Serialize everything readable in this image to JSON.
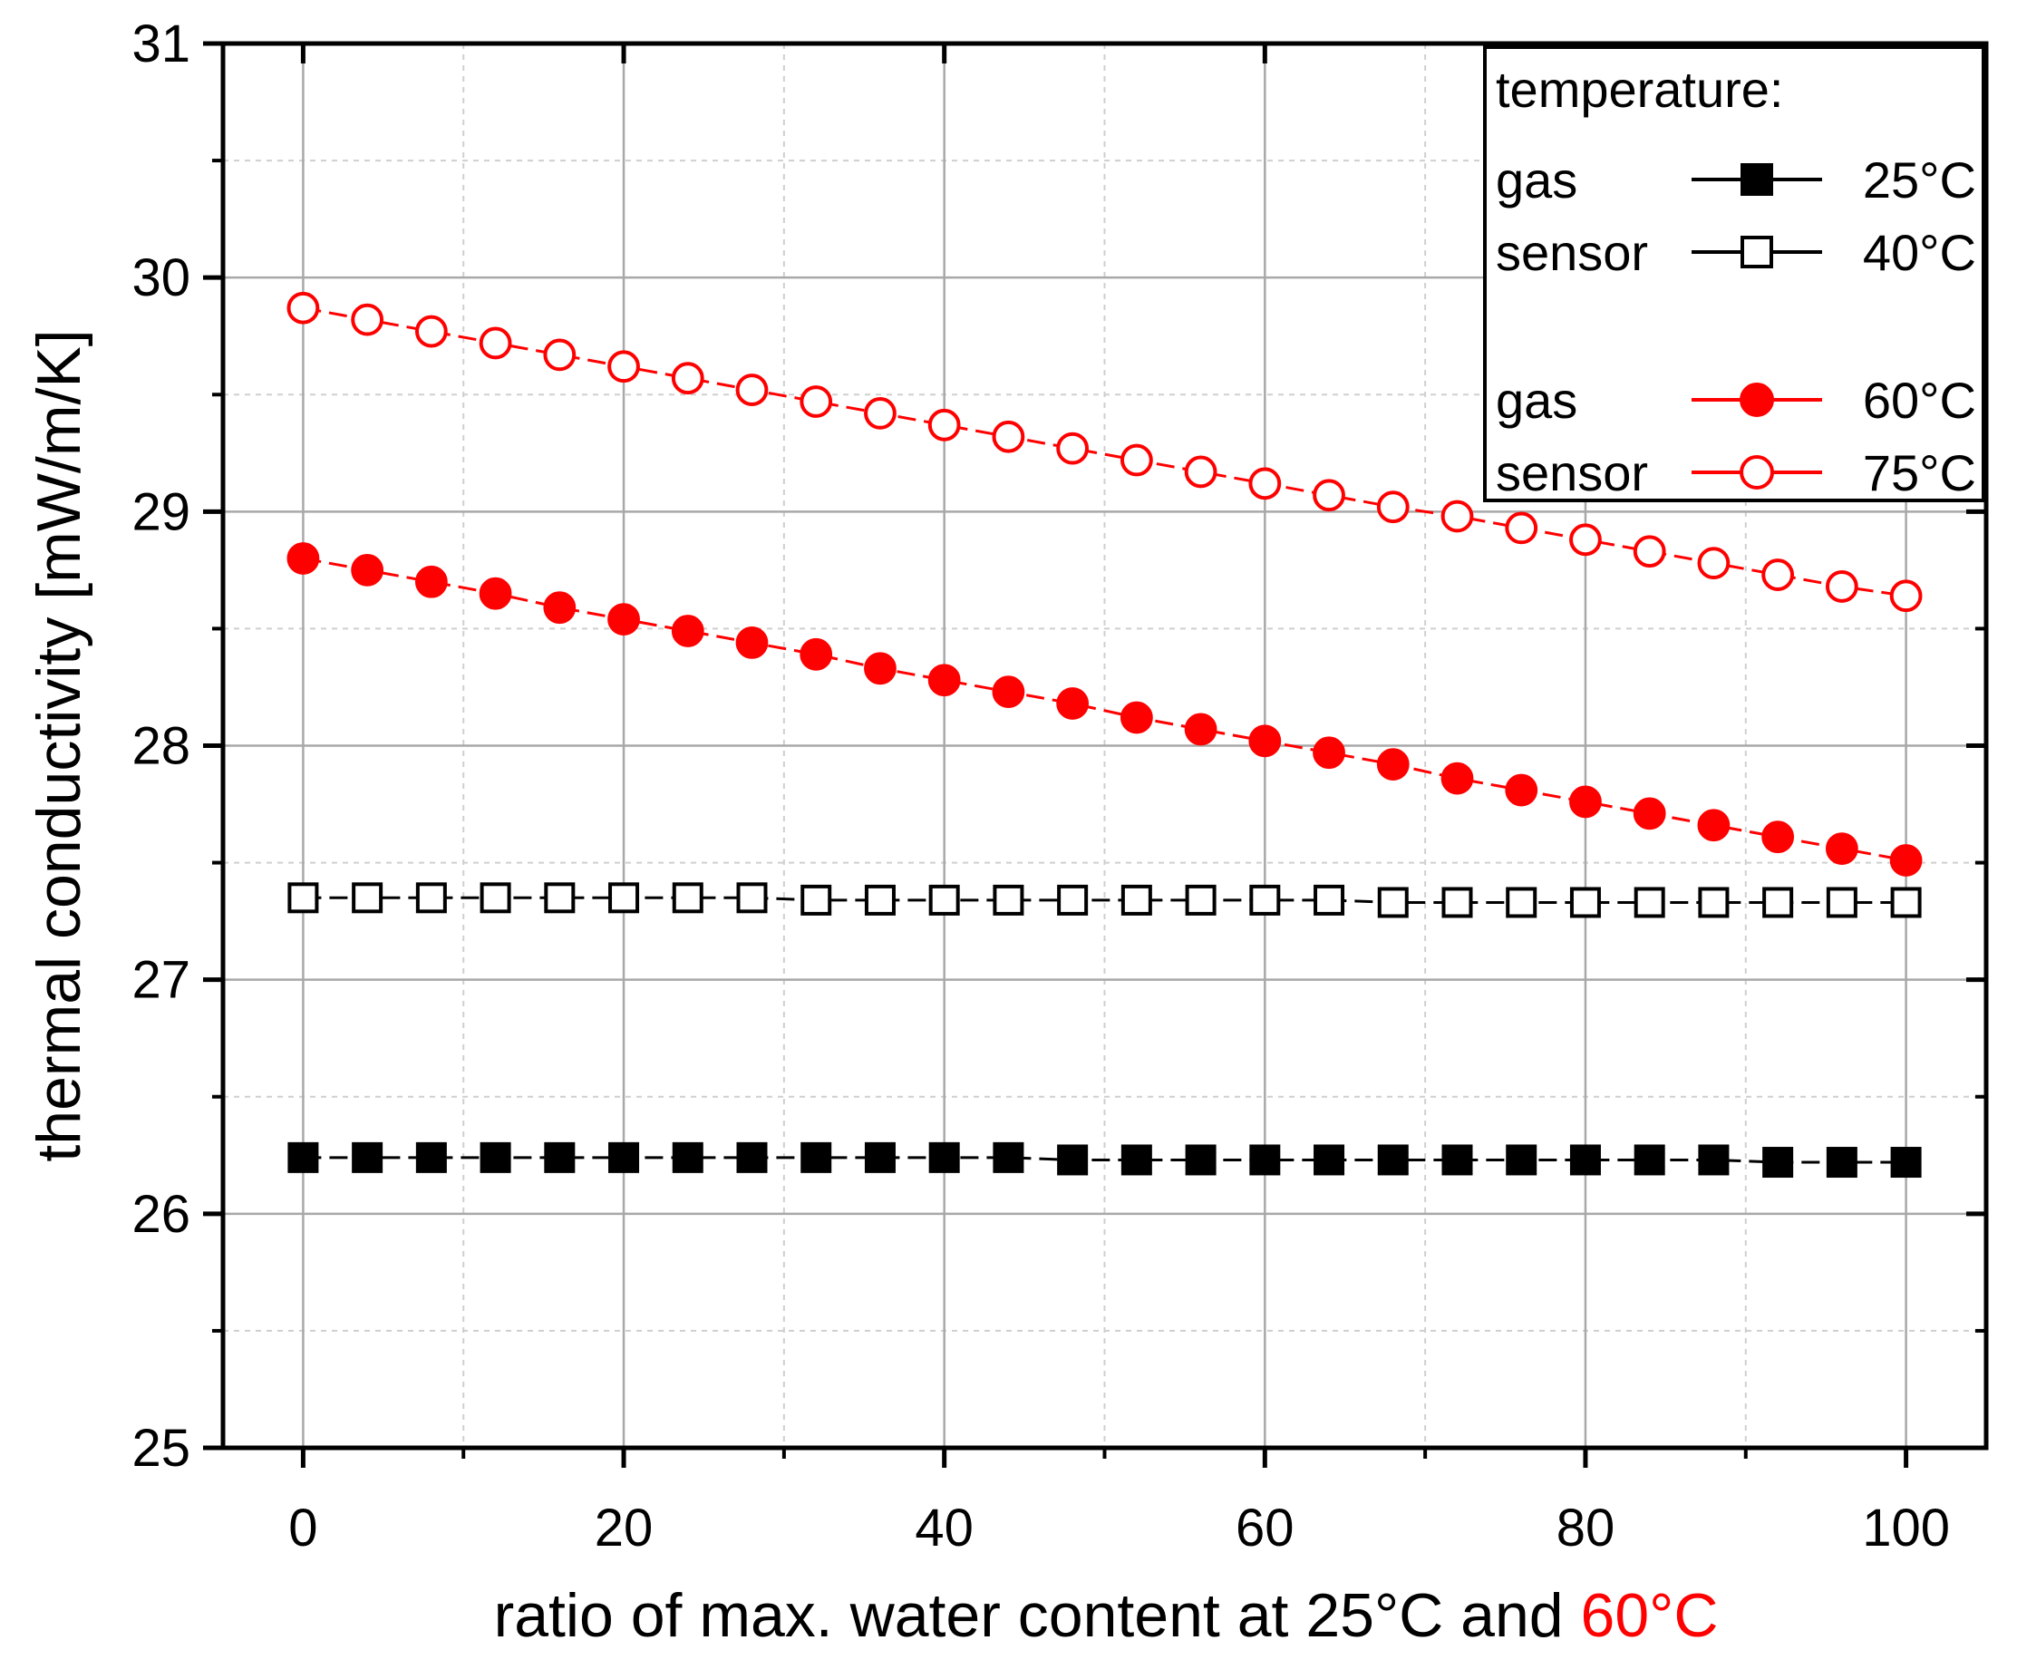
{
  "chart_data": {
    "type": "line",
    "title": "",
    "xlabel_parts": [
      {
        "text": "ratio of max. water content at 25°C and ",
        "color": "#000000"
      },
      {
        "text": "60°C",
        "color": "#ff0000"
      }
    ],
    "ylabel": "thermal conductivity [mW/m/K]",
    "xlim": [
      -5,
      105
    ],
    "ylim": [
      25,
      31
    ],
    "x_ticks": [
      0,
      20,
      40,
      60,
      80,
      100
    ],
    "x_tick_labels": [
      "0",
      "20",
      "40",
      "60",
      "80",
      "100"
    ],
    "x_minor_ticks": [
      10,
      30,
      50,
      70,
      90
    ],
    "y_ticks": [
      25,
      26,
      27,
      28,
      29,
      30,
      31
    ],
    "y_tick_labels": [
      "25",
      "26",
      "27",
      "28",
      "29",
      "30",
      "31"
    ],
    "y_minor_ticks": [
      25.5,
      26.5,
      27.5,
      28.5,
      29.5,
      30.5
    ],
    "grid": true,
    "legend_position": "top-right",
    "legend": {
      "title": "temperature:",
      "entries": [
        {
          "label": "gas",
          "series_label": "25°C",
          "series_index": 0
        },
        {
          "label": "sensor",
          "series_label": "40°C",
          "series_index": 1
        },
        {
          "label": "gas",
          "series_label": "60°C",
          "series_index": 2
        },
        {
          "label": "sensor",
          "series_label": "75°C",
          "series_index": 3
        }
      ]
    },
    "x": [
      0,
      4,
      8,
      12,
      16,
      20,
      24,
      28,
      32,
      36,
      40,
      44,
      48,
      52,
      56,
      60,
      64,
      68,
      72,
      76,
      80,
      84,
      88,
      92,
      96,
      100
    ],
    "series": [
      {
        "name": "25°C",
        "color": "#000000",
        "marker": "square",
        "filled": true,
        "values": [
          26.24,
          26.24,
          26.24,
          26.24,
          26.24,
          26.24,
          26.24,
          26.24,
          26.24,
          26.24,
          26.24,
          26.24,
          26.23,
          26.23,
          26.23,
          26.23,
          26.23,
          26.23,
          26.23,
          26.23,
          26.23,
          26.23,
          26.23,
          26.22,
          26.22,
          26.22
        ]
      },
      {
        "name": "40°C",
        "color": "#000000",
        "marker": "square",
        "filled": false,
        "values": [
          27.35,
          27.35,
          27.35,
          27.35,
          27.35,
          27.35,
          27.35,
          27.35,
          27.34,
          27.34,
          27.34,
          27.34,
          27.34,
          27.34,
          27.34,
          27.34,
          27.34,
          27.33,
          27.33,
          27.33,
          27.33,
          27.33,
          27.33,
          27.33,
          27.33,
          27.33
        ]
      },
      {
        "name": "60°C",
        "color": "#ff0000",
        "marker": "circle",
        "filled": true,
        "values": [
          28.8,
          28.75,
          28.7,
          28.65,
          28.59,
          28.54,
          28.49,
          28.44,
          28.39,
          28.33,
          28.28,
          28.23,
          28.18,
          28.12,
          28.07,
          28.02,
          27.97,
          27.92,
          27.86,
          27.81,
          27.76,
          27.71,
          27.66,
          27.61,
          27.56,
          27.51
        ]
      },
      {
        "name": "75°C",
        "color": "#ff0000",
        "marker": "circle",
        "filled": false,
        "values": [
          29.87,
          29.82,
          29.77,
          29.72,
          29.67,
          29.62,
          29.57,
          29.52,
          29.47,
          29.42,
          29.37,
          29.32,
          29.27,
          29.22,
          29.17,
          29.12,
          29.07,
          29.02,
          28.98,
          28.93,
          28.88,
          28.83,
          28.78,
          28.73,
          28.68,
          28.64
        ]
      }
    ]
  }
}
